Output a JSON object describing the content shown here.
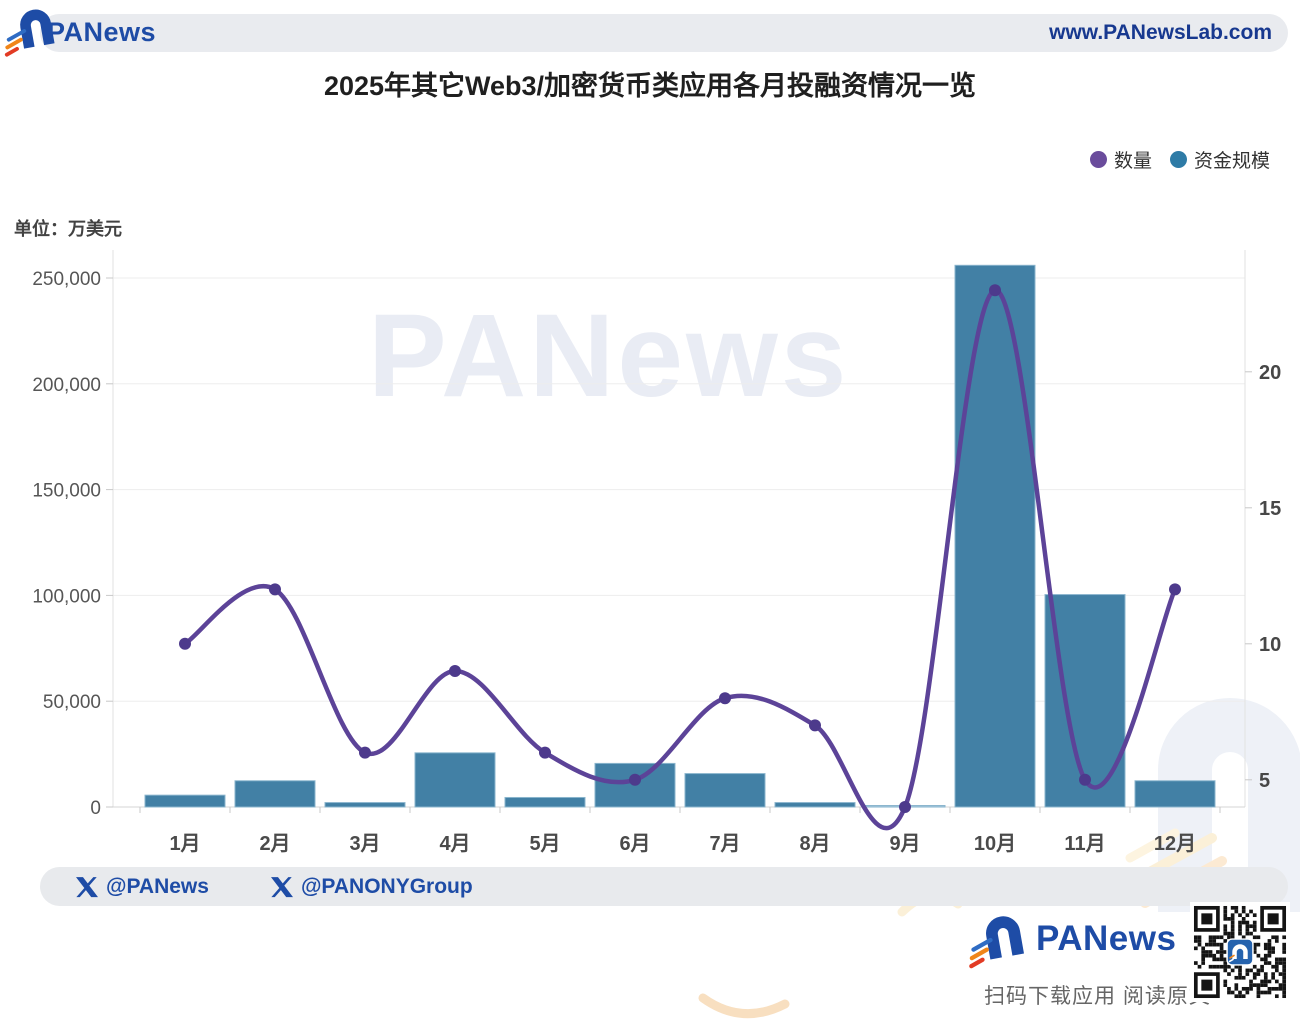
{
  "header": {
    "brand": "PANews",
    "url": "www.PANewsLab.com"
  },
  "title": "2025年其它Web3/加密货币类应用各月投融资情况一览",
  "unit_label": "单位：万美元",
  "watermark": "PANews",
  "legend": [
    {
      "label": "数量",
      "color": "#6a4c9c"
    },
    {
      "label": "资金规模",
      "color": "#2e7ba6"
    }
  ],
  "footer": {
    "twitter1": "@PANews",
    "twitter2": "@PANONYGroup",
    "brand": "PANews",
    "scan_text": "扫码下载应用  阅读原文"
  },
  "colors": {
    "brand_blue": "#1e4ca6",
    "url_blue": "#17388f",
    "pill_bg": "#e9ebef",
    "bar": "#4280a5",
    "bar_border": "#8ab5cd",
    "bar_small": "#a6cade",
    "line": "#5c4398",
    "marker": "#4d3a8c",
    "grid": "#ededed",
    "axis_line": "#e2e2e2",
    "tick": "#c8c8c8",
    "axis_text": "#565656",
    "watermark_grey": "#eef1f7",
    "watermark_yellow": "#fbf0d8",
    "stripe_blue": "#2f6cc4",
    "stripe_orange": "#f08519",
    "stripe_red": "#e23b24",
    "qr_logo_bg": "#2563ae",
    "qr_module": "#141414"
  },
  "chart_data": {
    "type": "bar",
    "title": "2025年其它Web3/加密货币类应用各月投融资情况一览",
    "unit": "万美元",
    "categories": [
      "1月",
      "2月",
      "3月",
      "4月",
      "5月",
      "6月",
      "7月",
      "8月",
      "9月",
      "10月",
      "11月",
      "12月"
    ],
    "series": [
      {
        "name": "资金规模",
        "type": "bar",
        "axis": "left",
        "values": [
          5600,
          12400,
          2100,
          25600,
          4500,
          20600,
          15800,
          2100,
          700,
          256000,
          100400,
          12400
        ]
      },
      {
        "name": "数量",
        "type": "line",
        "axis": "right",
        "values": [
          10,
          12,
          6,
          9,
          6,
          5,
          8,
          7,
          4,
          23,
          5,
          12
        ]
      }
    ],
    "left_axis": {
      "ticks": [
        0,
        50000,
        100000,
        150000,
        200000,
        250000
      ],
      "range": [
        0,
        250000
      ]
    },
    "right_axis": {
      "ticks": [
        5,
        10,
        15,
        20
      ],
      "range": [
        4,
        24.5
      ]
    },
    "grid": true,
    "legend_position": "top-right"
  }
}
